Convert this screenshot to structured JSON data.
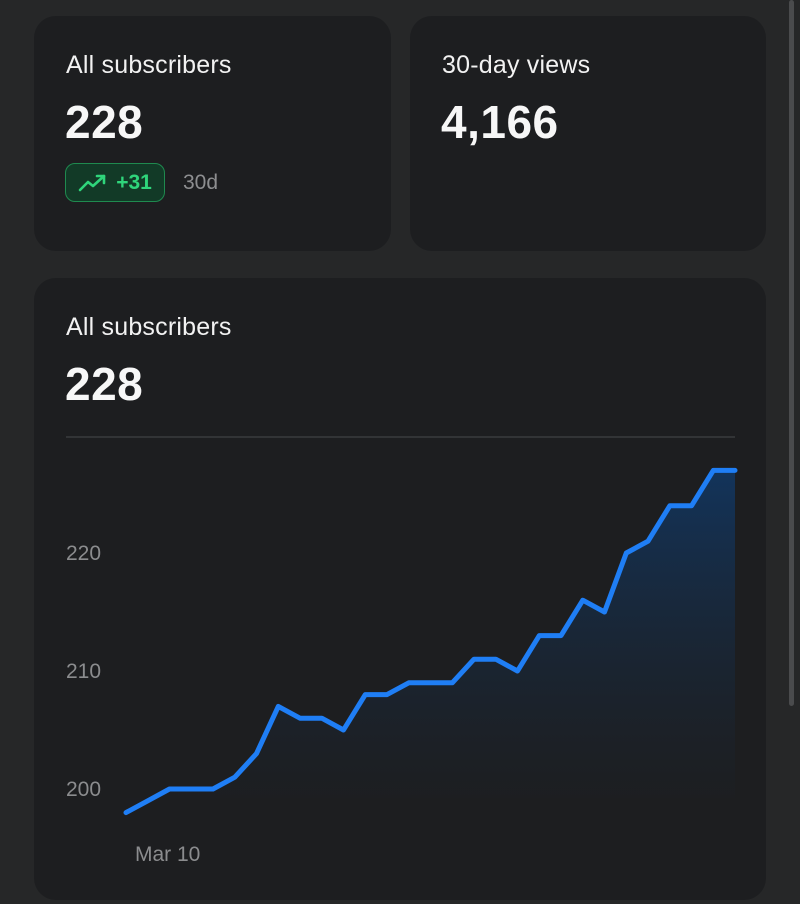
{
  "cards": {
    "subscribers": {
      "label": "All subscribers",
      "value": "228",
      "delta": "+31",
      "delta_period": "30d",
      "delta_icon": "trending-up-icon"
    },
    "views": {
      "label": "30-day views",
      "value": "4,166"
    }
  },
  "chart_card": {
    "label": "All subscribers",
    "value": "228"
  },
  "colors": {
    "background": "#262728",
    "card": "#1d1e20",
    "line": "#1f7ef5",
    "delta_text": "#2fd57b",
    "delta_bg": "#123a27"
  },
  "chart_data": {
    "type": "area",
    "title": "",
    "xlabel": "",
    "ylabel": "",
    "x_tick_labels": [
      "Mar 10"
    ],
    "y_ticks": [
      200,
      210,
      220
    ],
    "ylim": [
      195,
      235
    ],
    "grid": false,
    "series": [
      {
        "values": [
          198,
          199,
          200,
          200,
          200,
          201,
          203,
          207,
          206,
          206,
          205,
          208,
          208,
          209,
          209,
          209,
          211,
          211,
          210,
          213,
          213,
          216,
          215,
          220,
          221,
          224,
          224,
          227,
          227
        ]
      }
    ]
  }
}
